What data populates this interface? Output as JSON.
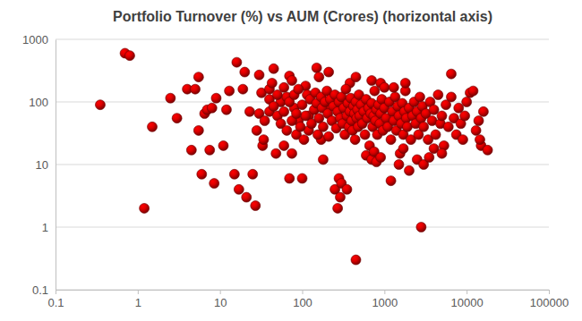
{
  "chart_data": {
    "type": "scatter",
    "title": "Portfolio Turnover (%) vs AUM (Crores) (horizontal axis)",
    "log": true,
    "grid": "y",
    "color": "#c00000",
    "marker": "sphere",
    "xlim": [
      0.1,
      100000
    ],
    "xticks": [
      0.1,
      1,
      10,
      100,
      1000,
      10000,
      100000
    ],
    "ylim": [
      0.1,
      1000
    ],
    "yticks": [
      0.1,
      1,
      10,
      100,
      1000
    ],
    "x": [
      0.35,
      0.7,
      0.8,
      1.2,
      1.5,
      2.5,
      3,
      4,
      5,
      5.5,
      4.5,
      5.5,
      6,
      6.5,
      7,
      8,
      8.5,
      9,
      7.5,
      11,
      12,
      13,
      15,
      16,
      17,
      19,
      20,
      21,
      23,
      25,
      27,
      28,
      30,
      30,
      32,
      33,
      34,
      40,
      40,
      43,
      45,
      48,
      50,
      55,
      60,
      65,
      70,
      70,
      75,
      80,
      85,
      90,
      100,
      105,
      110,
      120,
      150,
      160,
      170,
      180,
      200,
      210,
      250,
      270,
      280,
      290,
      300,
      350,
      380,
      450,
      2800,
      6500,
      16000,
      15000,
      18000,
      100,
      110,
      115,
      120,
      125,
      130,
      140,
      145,
      150,
      155,
      160,
      170,
      175,
      180,
      190,
      200,
      205,
      210,
      220,
      230,
      240,
      250,
      260,
      270,
      280,
      290,
      300,
      310,
      320,
      330,
      340,
      350,
      360,
      370,
      380,
      390,
      400,
      410,
      420,
      430,
      440,
      450,
      460,
      470,
      480,
      490,
      500,
      520,
      540,
      560,
      580,
      600,
      620,
      640,
      660,
      680,
      700,
      720,
      740,
      760,
      780,
      800,
      820,
      850,
      880,
      900,
      930,
      960,
      1000,
      1050,
      1100,
      1150,
      1200,
      1250,
      1300,
      1350,
      1400,
      1450,
      1500,
      1550,
      1600,
      1650,
      1700,
      1750,
      1800,
      1850,
      1900,
      2000,
      2100,
      2200,
      2300,
      2400,
      2500,
      2600,
      2700,
      2800,
      2900,
      3000,
      3200,
      3400,
      3600,
      3800,
      4000,
      4200,
      4500,
      4800,
      5000,
      5300,
      5600,
      6000,
      6500,
      7000,
      7500,
      8000,
      8500,
      9000,
      9500,
      10000,
      11000,
      12000,
      13000,
      14000,
      14500,
      600,
      700,
      750,
      800,
      900,
      1200,
      1500,
      1700,
      2000,
      2500,
      3000,
      3500,
      4000,
      5000,
      700,
      900,
      1300,
      1800,
      1000,
      450,
      35,
      40,
      45,
      50,
      55,
      60,
      65,
      70,
      75,
      80,
      85,
      90,
      95,
      60,
      75
    ],
    "values": [
      90,
      600,
      550,
      2,
      40,
      115,
      55,
      160,
      160,
      250,
      17,
      35,
      7,
      65,
      75,
      80,
      5,
      115,
      17,
      20,
      75,
      150,
      7,
      430,
      4,
      160,
      300,
      3,
      70,
      7,
      2.2,
      35,
      270,
      65,
      140,
      20,
      25,
      70,
      160,
      200,
      340,
      15,
      60,
      100,
      170,
      120,
      260,
      6,
      220,
      80,
      30,
      50,
      6,
      25,
      180,
      60,
      350,
      250,
      25,
      12,
      80,
      300,
      4,
      2,
      6,
      3,
      5,
      4,
      200,
      0.3,
      1,
      280,
      70,
      20,
      17,
      90,
      60,
      130,
      35,
      110,
      45,
      75,
      140,
      95,
      30,
      55,
      120,
      80,
      40,
      100,
      150,
      65,
      28,
      110,
      50,
      85,
      130,
      38,
      70,
      100,
      55,
      120,
      45,
      80,
      30,
      160,
      60,
      95,
      40,
      70,
      115,
      50,
      35,
      85,
      65,
      25,
      100,
      55,
      75,
      40,
      130,
      60,
      90,
      45,
      70,
      30,
      110,
      55,
      80,
      20,
      65,
      95,
      40,
      60,
      150,
      50,
      75,
      30,
      90,
      45,
      65,
      110,
      35,
      80,
      55,
      40,
      100,
      25,
      70,
      50,
      120,
      35,
      85,
      60,
      15,
      45,
      95,
      30,
      70,
      150,
      55,
      40,
      80,
      25,
      60,
      100,
      45,
      70,
      30,
      120,
      55,
      85,
      40,
      65,
      25,
      100,
      50,
      75,
      30,
      130,
      45,
      60,
      20,
      90,
      40,
      120,
      55,
      30,
      80,
      45,
      25,
      60,
      100,
      140,
      150,
      35,
      50,
      25,
      14,
      12,
      16,
      11,
      13,
      5.5,
      10,
      18,
      8,
      12,
      10,
      13,
      18,
      15,
      220,
      200,
      170,
      200,
      170,
      250,
      50,
      110,
      85,
      130,
      45,
      70,
      35,
      100,
      50,
      130,
      65,
      160,
      40,
      20,
      15
    ]
  }
}
